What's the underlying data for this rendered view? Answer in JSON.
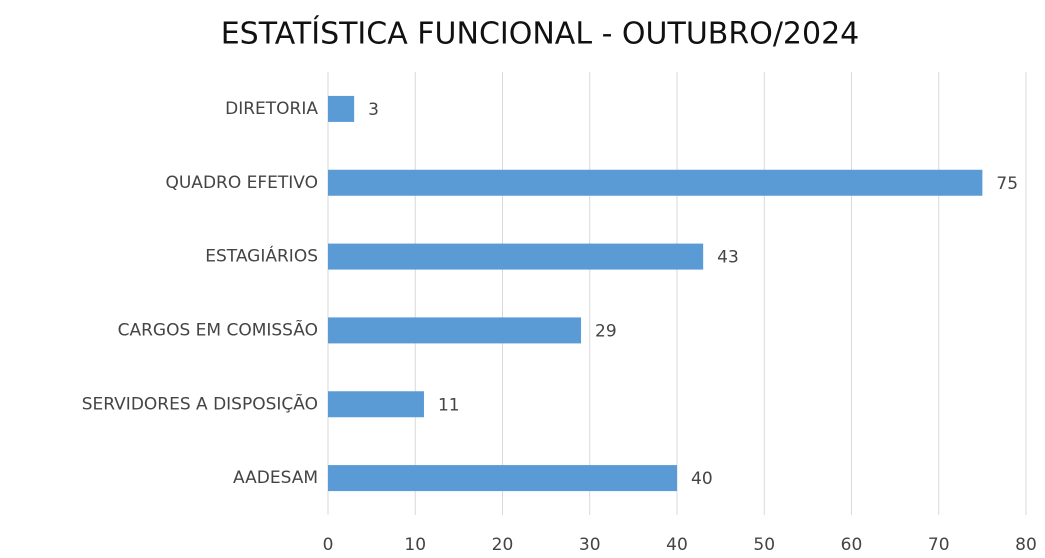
{
  "chart_data": {
    "type": "bar",
    "title": "ESTATÍSTICA FUNCIONAL - OUTUBRO/2024",
    "categories": [
      "DIRETORIA",
      "QUADRO EFETIVO",
      "ESTAGIÁRIOS",
      "CARGOS EM COMISSÃO",
      "SERVIDORES A DISPOSIÇÃO",
      "AADESAM"
    ],
    "values": [
      3,
      75,
      43,
      29,
      11,
      40
    ],
    "color": "#5b9bd5",
    "xlim": [
      0,
      80
    ],
    "xticks": [
      0,
      10,
      20,
      30,
      40,
      50,
      60,
      70,
      80
    ],
    "grid": true
  }
}
